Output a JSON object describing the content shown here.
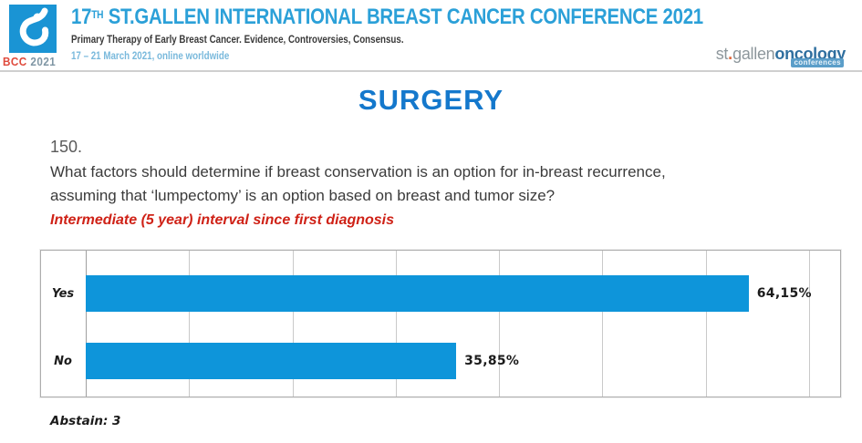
{
  "header": {
    "logo": {
      "badge_red": "BCC",
      "badge_year": "2021"
    },
    "title_num": "17",
    "title_sup": "TH",
    "title_rest": " ST.GALLEN INTERNATIONAL BREAST CANCER CONFERENCE 2021",
    "subtitle": "Primary Therapy of Early Breast Cancer. Evidence, Controversies, Consensus.",
    "dates": "17 – 21 March 2021, online worldwide",
    "stgallen_logo": {
      "part_st": "st",
      "dot": ".",
      "part_gallen": "gallen",
      "part_oncology": "oncology",
      "badge": "conferences"
    }
  },
  "main": {
    "section_title": "SURGERY",
    "question_number": "150.",
    "question_text": "What factors should determine if breast conservation is an option for in-breast recurrence, assuming that ‘lumpectomy’ is an option based on breast and tumor size?",
    "question_subtitle": "Intermediate (5 year) interval since first diagnosis",
    "abstain_text": "Abstain: 3"
  },
  "chart_data": {
    "type": "bar",
    "orientation": "horizontal",
    "title": "",
    "categories": [
      "Yes",
      "No"
    ],
    "values": [
      64.15,
      35.85
    ],
    "value_labels": [
      "64,15%",
      "35,85%"
    ],
    "xlim": [
      0,
      73
    ],
    "grid_step": 10,
    "grid": true,
    "legend": false,
    "bar_color": "#0e95da",
    "abstain_count": 3
  },
  "colors": {
    "header_title_blue": "#2ba0d8",
    "surgery_blue": "#1478cc",
    "bar_blue": "#0e95da",
    "accent_red": "#cf2217",
    "date_blue": "#79b9dc",
    "logo_red": "#df4a3c",
    "logo_square_blue": "#1a94d4"
  }
}
